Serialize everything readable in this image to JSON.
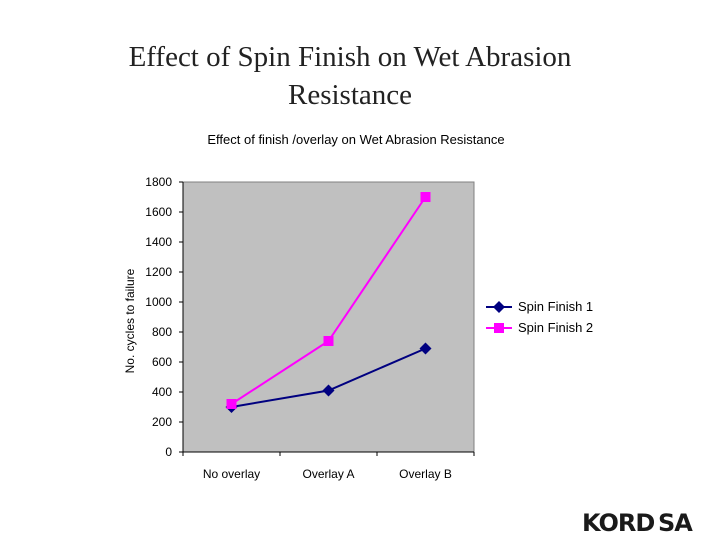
{
  "slide": {
    "title_line1": "Effect of Spin Finish on Wet Abrasion",
    "title_line2": "Resistance"
  },
  "chart_data": {
    "type": "line",
    "title": "Effect of finish /overlay on Wet Abrasion Resistance",
    "xlabel": "",
    "ylabel": "No. cycles to failure",
    "categories": [
      "No overlay",
      "Overlay A",
      "Overlay B"
    ],
    "ylim": [
      0,
      1800
    ],
    "yticks": [
      0,
      200,
      400,
      600,
      800,
      1000,
      1200,
      1400,
      1600,
      1800
    ],
    "grid": false,
    "legend_position": "right",
    "series": [
      {
        "name": "Spin Finish 1",
        "values": [
          300,
          410,
          690
        ],
        "color": "#000080",
        "marker": "diamond"
      },
      {
        "name": "Spin Finish 2",
        "values": [
          320,
          740,
          1700
        ],
        "color": "#ff00ff",
        "marker": "square"
      }
    ],
    "plot_background": "#c0c0c0"
  },
  "logo": {
    "text_a": "KORD",
    "text_b": "SA"
  }
}
